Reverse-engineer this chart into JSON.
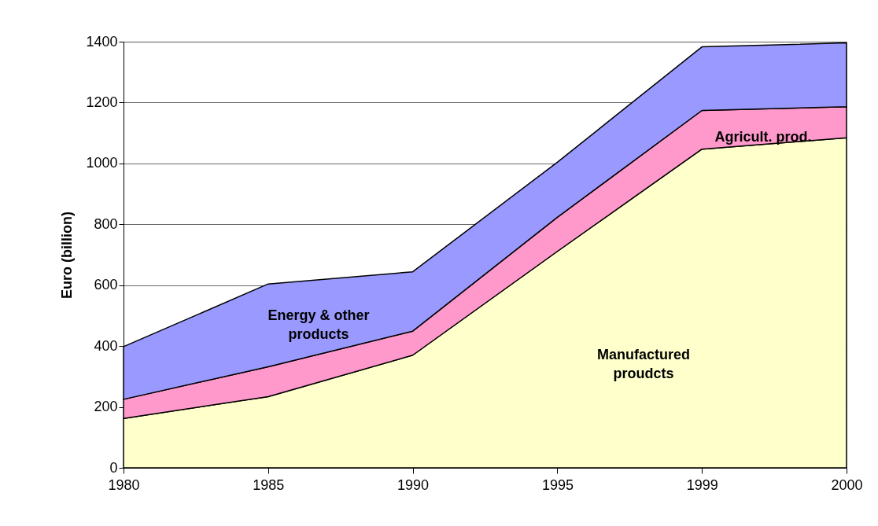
{
  "chart_data": {
    "type": "area",
    "stacked": true,
    "ylabel": "Euro (billion)",
    "categories": [
      "1980",
      "1985",
      "1990",
      "1995",
      "1999",
      "2000"
    ],
    "series": [
      {
        "name": "Manufactured proudcts",
        "color": "#ffffcc",
        "values": [
          162,
          234,
          370,
          711,
          1047,
          1084
        ]
      },
      {
        "name": "Agricult. prod.",
        "color": "#ff99cc",
        "values": [
          63,
          98,
          79,
          112,
          127,
          102
        ]
      },
      {
        "name": "Energy & other products",
        "color": "#9999ff",
        "values": [
          173,
          272,
          195,
          181,
          209,
          210
        ]
      }
    ],
    "ylim": [
      0,
      1400
    ],
    "yticks": [
      0,
      200,
      400,
      600,
      800,
      1000,
      1200,
      1400
    ],
    "grid": "y",
    "legend": false
  }
}
